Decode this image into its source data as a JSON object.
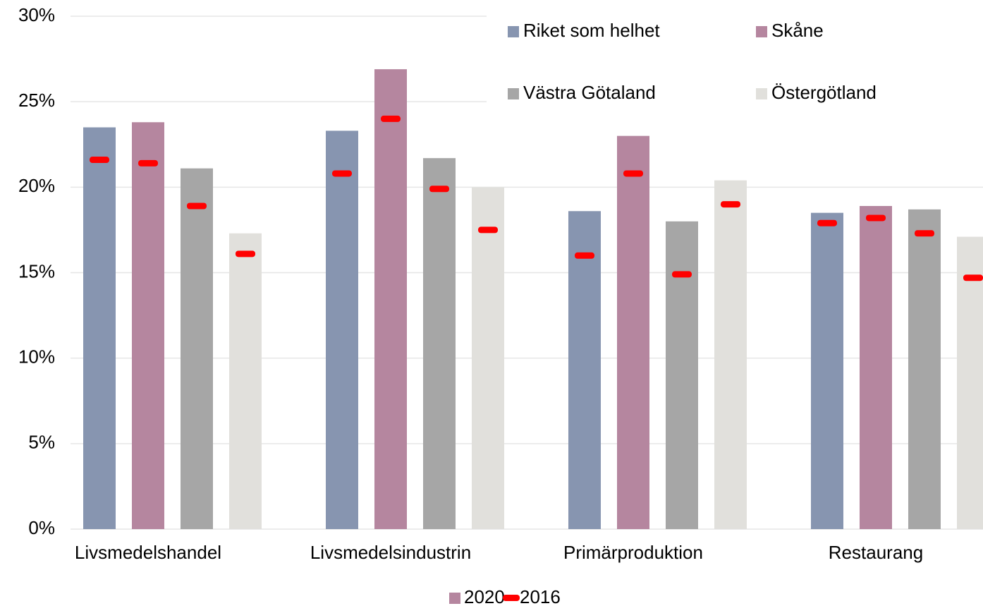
{
  "chart_data": {
    "type": "bar",
    "categories": [
      "Livsmedelshandel",
      "Livsmedelsindustrin",
      "Primärproduktion",
      "Restaurang"
    ],
    "series": [
      {
        "name": "Riket som helhet",
        "color": "#8795b0",
        "values": [
          23.5,
          23.3,
          18.6,
          18.5
        ],
        "values_2016": [
          21.6,
          20.8,
          16.0,
          17.9
        ]
      },
      {
        "name": "Skåne",
        "color": "#b5869f",
        "values": [
          23.8,
          26.9,
          23.0,
          18.9
        ],
        "values_2016": [
          21.4,
          24.0,
          20.8,
          18.2
        ]
      },
      {
        "name": "Västra Götaland",
        "color": "#a6a6a6",
        "values": [
          21.1,
          21.7,
          18.0,
          18.7
        ],
        "values_2016": [
          18.9,
          19.9,
          14.9,
          17.3
        ]
      },
      {
        "name": "Östergötland",
        "color": "#e1e0dc",
        "values": [
          17.3,
          20.0,
          20.4,
          17.1
        ],
        "values_2016": [
          16.1,
          17.5,
          19.0,
          14.7
        ]
      }
    ],
    "period_legend": [
      {
        "name": "2020",
        "color": "#b5869f"
      },
      {
        "name": "2016",
        "color": "#ff0000"
      }
    ],
    "ylim": [
      0,
      30
    ],
    "yticks": [
      {
        "value": 0,
        "label": "0%"
      },
      {
        "value": 5,
        "label": "5%"
      },
      {
        "value": 10,
        "label": "10%"
      },
      {
        "value": 15,
        "label": "15%"
      },
      {
        "value": 20,
        "label": "20%"
      },
      {
        "value": 25,
        "label": "25%"
      },
      {
        "value": 30,
        "label": "30%"
      }
    ],
    "grid": true
  }
}
